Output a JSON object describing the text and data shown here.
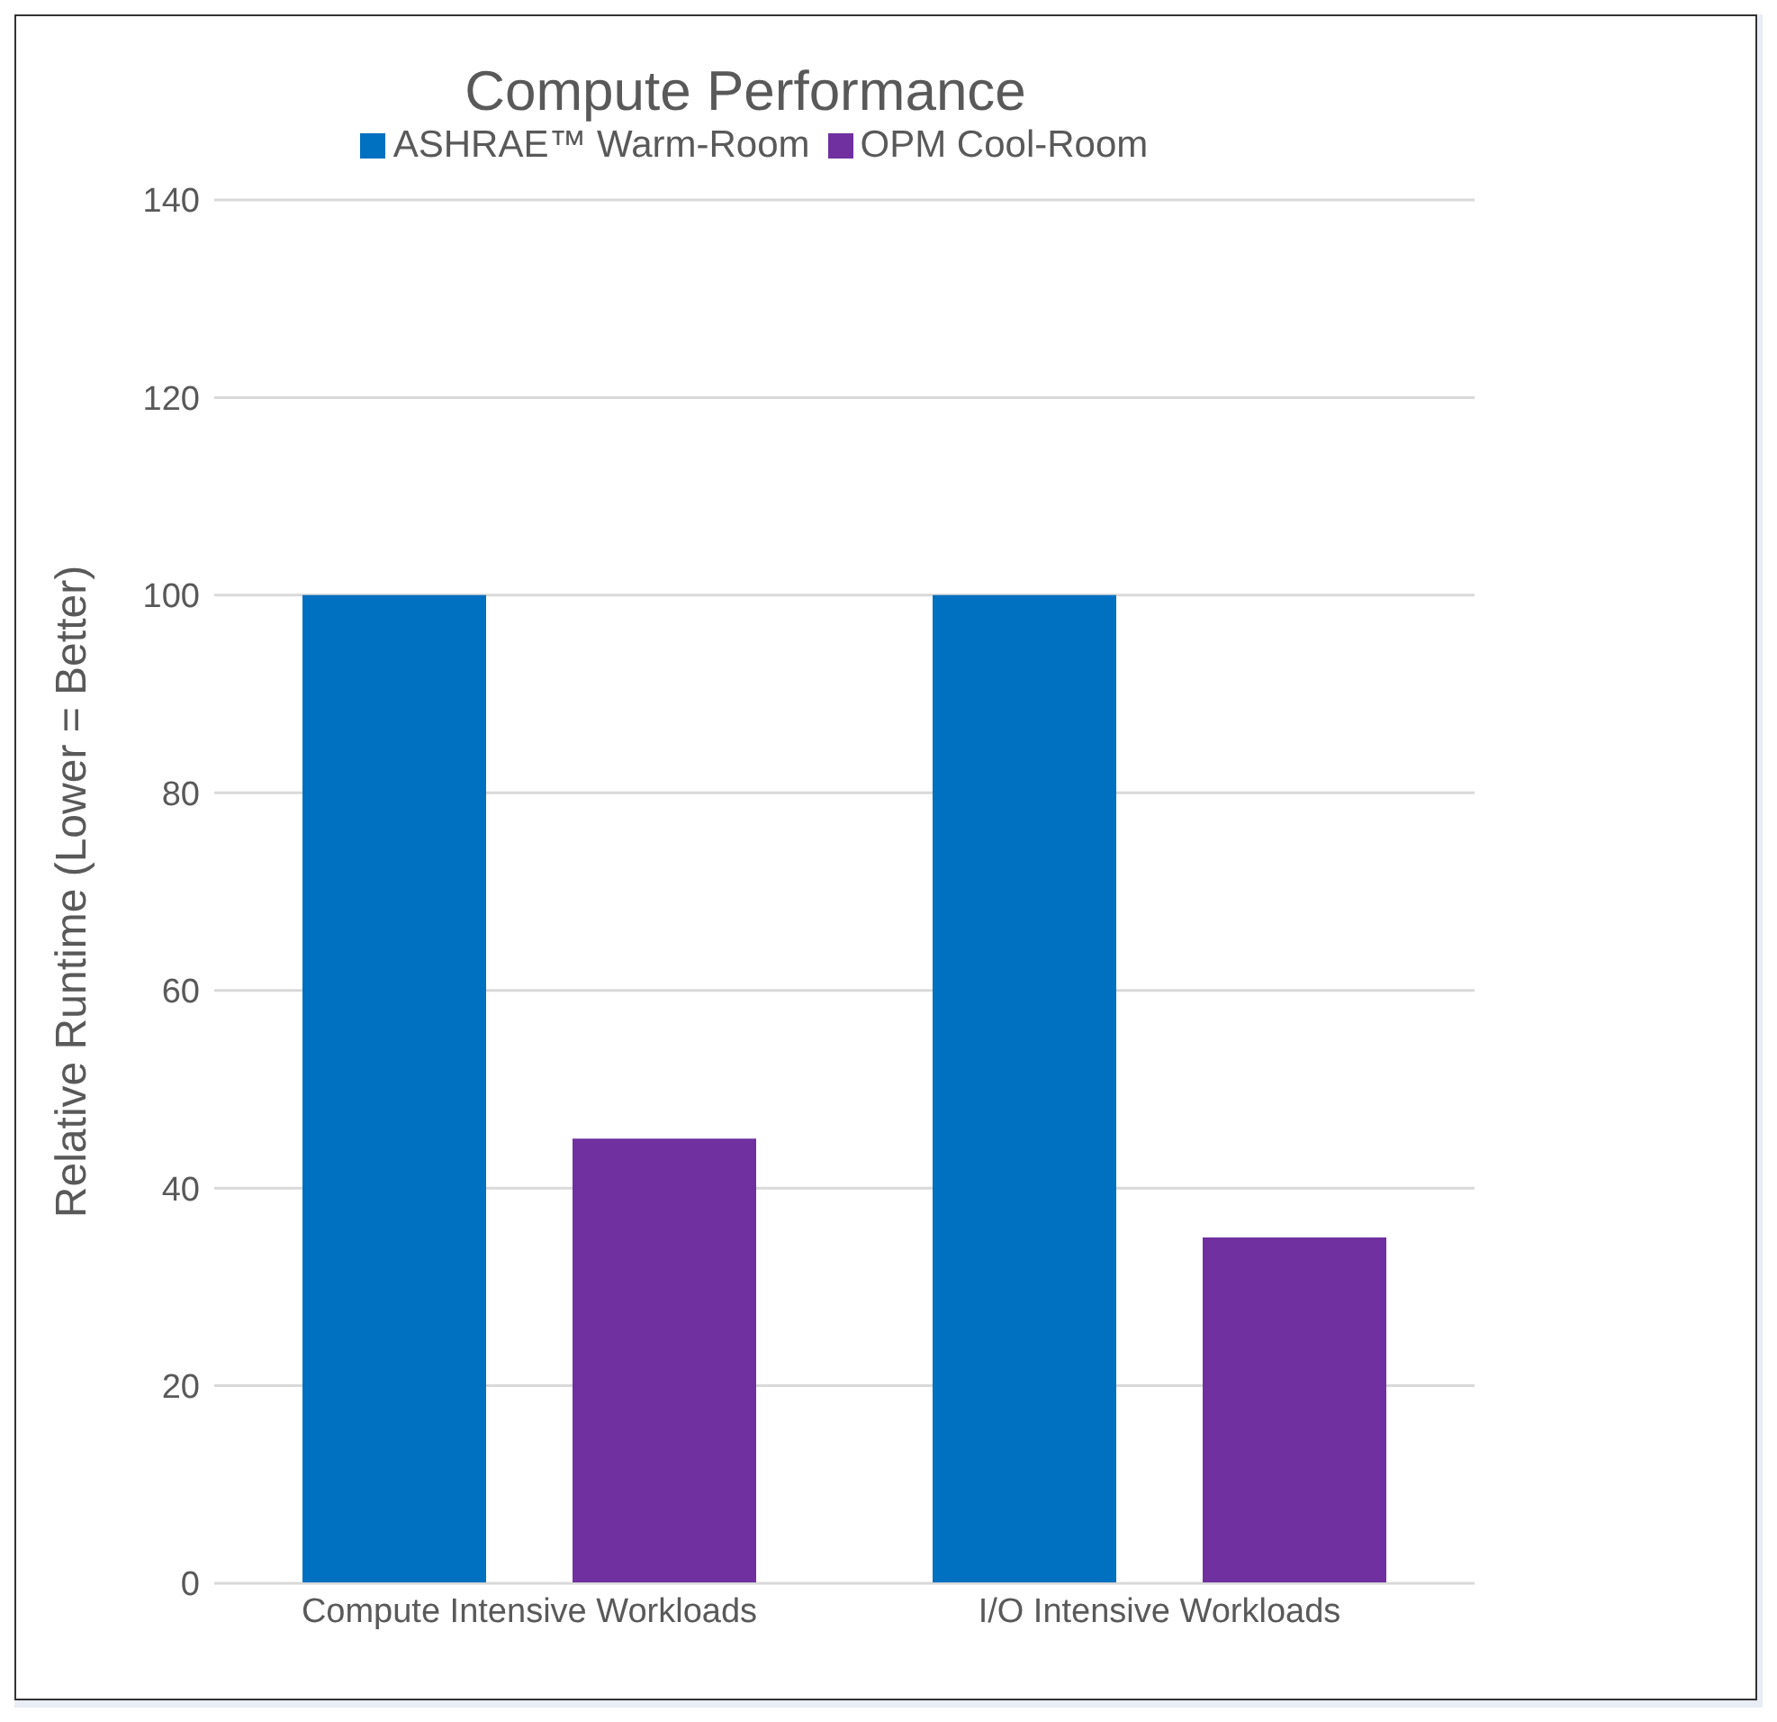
{
  "chart_data": {
    "type": "bar",
    "title": "Compute Performance",
    "ylabel": "Relative Runtime (Lower = Better)",
    "categories": [
      "Compute Intensive Workloads",
      "I/O Intensive Workloads"
    ],
    "series": [
      {
        "name": "ASHRAE™ Warm-Room",
        "color": "#0070c0",
        "values": [
          100,
          100
        ]
      },
      {
        "name": "OPM Cool-Room",
        "color": "#7030a0",
        "values": [
          45,
          35
        ]
      }
    ],
    "ylim": [
      0,
      140
    ],
    "yticks": [
      0,
      20,
      40,
      60,
      80,
      100,
      120,
      140
    ],
    "grid": "y",
    "legend": "top"
  }
}
